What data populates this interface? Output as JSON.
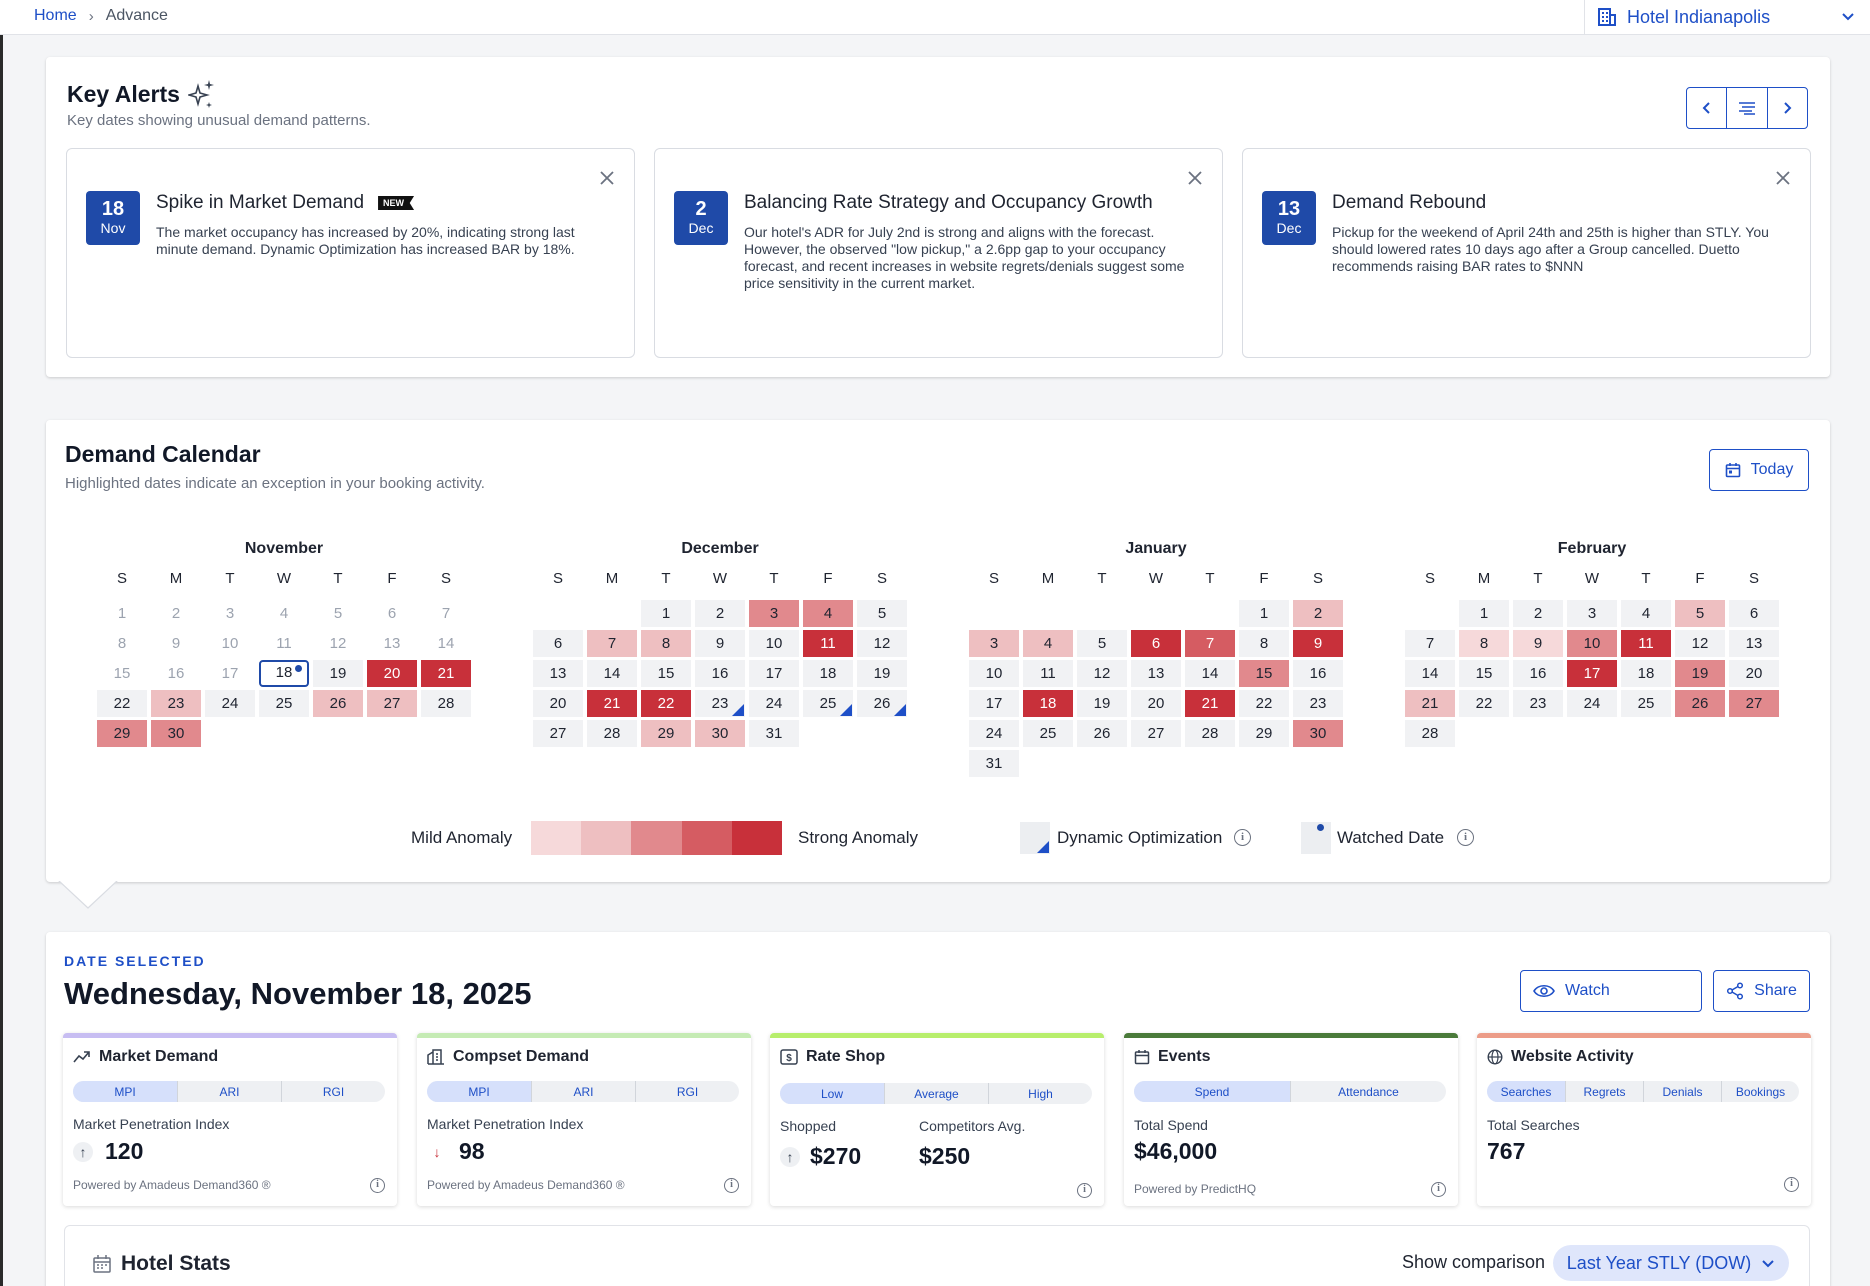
{
  "breadcrumb": {
    "home": "Home",
    "sep": "›",
    "current": "Advance"
  },
  "hotel_select": {
    "value": "Hotel Indianapolis",
    "icon": "building-icon"
  },
  "key_alerts": {
    "title": "Key Alerts",
    "subtitle": "Key dates showing unusual demand patterns.",
    "alerts": [
      {
        "day": "18",
        "month": "Nov",
        "title": "Spike in Market Demand",
        "tag": "NEW",
        "body": "The market occupancy has increased by 20%, indicating strong last minute demand. Dynamic Optimization has increased BAR by 18%."
      },
      {
        "day": "2",
        "month": "Dec",
        "title": "Balancing Rate Strategy and Occupancy Growth",
        "body": "Our hotel's ADR for July 2nd is strong and aligns with the forecast. However, the observed \"low pickup,\" a 2.6pp gap to your occupancy forecast, and recent increases in website regrets/denials suggest some price sensitivity in the current market."
      },
      {
        "day": "13",
        "month": "Dec",
        "title": "Demand Rebound",
        "body": "Pickup for the weekend of April 24th and 25th is higher than STLY. You should lowered rates 10 days ago after a Group cancelled. Duetto recommends raising BAR rates to $NNN"
      }
    ]
  },
  "calendar": {
    "title": "Demand Calendar",
    "subtitle": "Highlighted dates indicate an exception in your booking activity.",
    "today_label": "Today",
    "dow": [
      "S",
      "M",
      "T",
      "W",
      "T",
      "F",
      "S"
    ],
    "months": [
      {
        "name": "November",
        "start": 0,
        "days": 30,
        "past_until": 17,
        "selected": 18,
        "watched": [
          18
        ],
        "levels": {
          "20": 5,
          "21": 5,
          "23": 2,
          "26": 2,
          "27": 2,
          "29": 3,
          "30": 3
        },
        "dynamic": []
      },
      {
        "name": "December",
        "start": 2,
        "days": 31,
        "levels": {
          "3": 3,
          "4": 3,
          "7": 2,
          "8": 2,
          "11": 5,
          "21": 5,
          "22": 5,
          "29": 2,
          "30": 2
        },
        "dynamic": [
          23,
          25,
          26
        ]
      },
      {
        "name": "January",
        "start": 5,
        "days": 31,
        "levels": {
          "2": 2,
          "3": 2,
          "4": 2,
          "6": 5,
          "7": 4,
          "9": 5,
          "15": 3,
          "18": 5,
          "21": 5,
          "30": 3
        },
        "dynamic": []
      },
      {
        "name": "February",
        "start": 1,
        "days": 28,
        "levels": {
          "5": 2,
          "8": 1,
          "9": 1,
          "10": 3,
          "11": 5,
          "17": 5,
          "19": 3,
          "21": 2,
          "26": 3,
          "27": 3
        },
        "dynamic": []
      }
    ],
    "legend": {
      "mild": "Mild Anomaly",
      "strong": "Strong Anomaly",
      "dynamic": "Dynamic Optimization",
      "watched": "Watched Date",
      "scale_colors": [
        "#f6d9da",
        "#eebfc1",
        "#e1898d",
        "#d55c62",
        "#c8303a"
      ]
    }
  },
  "selected_date": {
    "label": "DATE SELECTED",
    "title": "Wednesday, November 18, 2025",
    "watch_label": "Watch",
    "share_label": "Share"
  },
  "metrics": {
    "market_demand": {
      "title": "Market Demand",
      "tabs": [
        "MPI",
        "ARI",
        "RGI"
      ],
      "label": "Market Penetration Index",
      "value": "120",
      "trend": "up",
      "powered": "Powered by Amadeus Demand360 ®",
      "color": "#c7bdf2"
    },
    "compset_demand": {
      "title": "Compset Demand",
      "tabs": [
        "MPI",
        "ARI",
        "RGI"
      ],
      "label": "Market Penetration Index",
      "value": "98",
      "trend": "down",
      "powered": "Powered by Amadeus Demand360 ®",
      "color": "#c5ebb4"
    },
    "rate_shop": {
      "title": "Rate Shop",
      "tabs": [
        "Low",
        "Average",
        "High"
      ],
      "label1": "Shopped",
      "value1": "$270",
      "label2": "Competitors Avg.",
      "value2": "$250",
      "color": "#b7ee6c"
    },
    "events": {
      "title": "Events",
      "tabs": [
        "Spend",
        "Attendance"
      ],
      "label": "Total Spend",
      "value": "$46,000",
      "powered": "Powered by PredictHQ",
      "color": "#4a7a3a"
    },
    "website": {
      "title": "Website Activity",
      "tabs": [
        "Searches",
        "Regrets",
        "Denials",
        "Bookings"
      ],
      "label": "Total Searches",
      "value": "767",
      "color": "#ec9c88"
    }
  },
  "hotel_stats": {
    "title": "Hotel Stats",
    "comparison_label": "Show comparison",
    "comparison_value": "Last Year STLY (DOW)"
  }
}
